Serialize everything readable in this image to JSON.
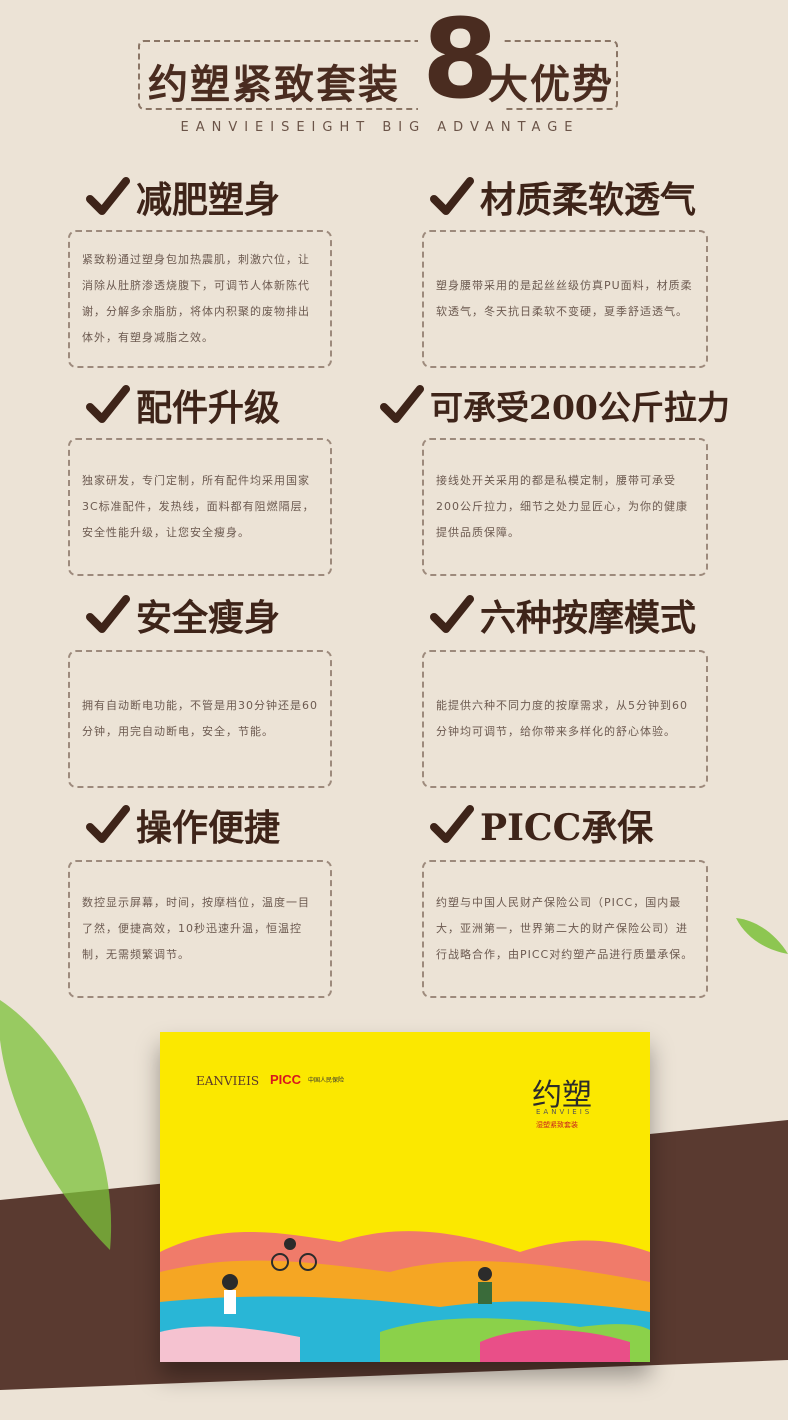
{
  "header": {
    "title_left": "约塑紧致套装",
    "title_number": "8",
    "title_right": "大优势",
    "subtitle": "EANVIEISEIGHT BIG ADVANTAGE"
  },
  "features": [
    {
      "title": "减肥塑身",
      "text": "紧致粉通过塑身包加热震肌，刺激穴位，让消除从肚脐渗透烧腹下，可调节人体新陈代谢，分解多余脂肪，将体内积聚的废物排出体外，有塑身减脂之效。"
    },
    {
      "title": "材质柔软透气",
      "text": "塑身腰带采用的是起丝丝级仿真PU面料，材质柔软透气，冬天抗日柔软不变硬，夏季舒适透气。"
    },
    {
      "title": "配件升级",
      "text": "独家研发，专门定制，所有配件均采用国家3C标准配件，发热线，面料都有阻燃隔层，安全性能升级，让您安全瘦身。"
    },
    {
      "title": "可承受200公斤拉力",
      "text": "接线处开关采用的都是私模定制，腰带可承受200公斤拉力，细节之处力显匠心，为你的健康提供品质保障。"
    },
    {
      "title": "安全瘦身",
      "text": "拥有自动断电功能，不管是用30分钟还是60分钟，用完自动断电，安全，节能。"
    },
    {
      "title": "六种按摩模式",
      "text": "能提供六种不同力度的按摩需求，从5分钟到60分钟均可调节，给你带来多样化的舒心体验。"
    },
    {
      "title": "操作便捷",
      "text": "数控显示屏幕，时间，按摩档位，温度一目了然，便捷高效，10秒迅速升温，恒温控制，无需频繁调节。"
    },
    {
      "title": "PICC承保",
      "text": "约塑与中国人民财产保险公司（PICC，国内最大，亚洲第一，世界第二大的财产保险公司）进行战略合作，由PICC对约塑产品进行质量承保。"
    }
  ],
  "package": {
    "brand": "EANVIEIS",
    "picc": "PICC",
    "picc_sub": "中国人民保险",
    "logo": "约塑",
    "logo_en": "EANVIEIS",
    "logo_sub": "湿塑紧致套装"
  },
  "colors": {
    "background": "#ece3d6",
    "text_brown": "#4a2c20",
    "band_brown": "#5a3a30",
    "package_yellow": "#fbe800",
    "leaf_green": "#7cc13a"
  },
  "icons": [
    "check-icon",
    "leaf-decoration"
  ]
}
